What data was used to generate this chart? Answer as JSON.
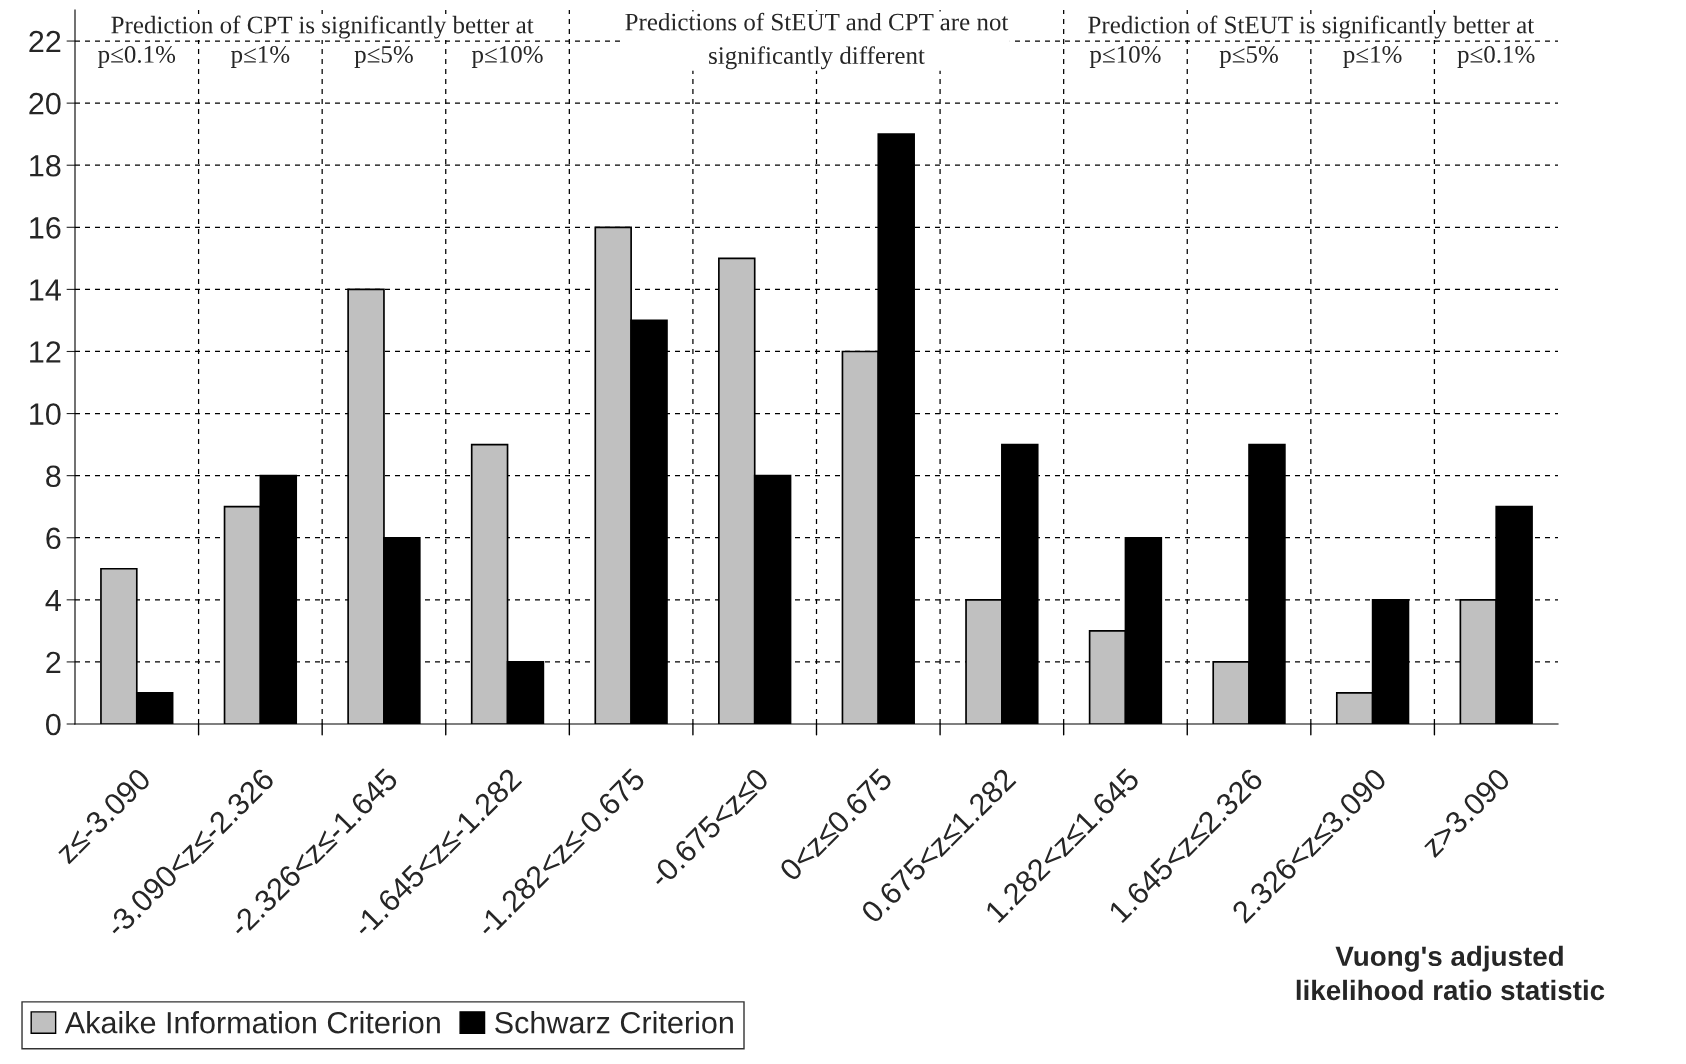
{
  "chart_data": {
    "type": "bar",
    "categories": [
      "z≤-3.090",
      "-3.090<z≤-2.326",
      "-2.326<z≤-1.645",
      "-1.645<z≤-1.282",
      "-1.282<z≤-0.675",
      "-0.675<z≤0",
      "0<z≤0.675",
      "0.675<z≤1.282",
      "1.282<z≤1.645",
      "1.645<z≤2.326",
      "2.326<z≤3.090",
      "z>3.090"
    ],
    "series": [
      {
        "name": "Akaike Information Criterion",
        "color": "#c0c0c0",
        "values": [
          5,
          7,
          14,
          9,
          16,
          15,
          12,
          4,
          3,
          2,
          1,
          4
        ]
      },
      {
        "name": "Schwarz Criterion",
        "color": "#000000",
        "values": [
          1,
          8,
          6,
          2,
          13,
          8,
          19,
          9,
          6,
          9,
          4,
          7
        ]
      }
    ],
    "xlabel": "Vuong's adjusted\nlikelihood ratio statistic",
    "ylim": [
      0,
      23
    ],
    "yticks": [
      0,
      2,
      4,
      6,
      8,
      10,
      12,
      14,
      16,
      18,
      20,
      22
    ],
    "grid": true,
    "legend": "bottom left",
    "annotations": [
      "Prediction of CPT is significantly better at",
      "p≤0.1%",
      "p≤1%",
      "p≤5%",
      "p≤10%",
      "Predictions of StEUT and CPT are not\nsignificantly different",
      "Prediction of StEUT is significantly better at",
      "p≤10%",
      "p≤5%",
      "p≤1%",
      "p≤0.1%"
    ]
  }
}
